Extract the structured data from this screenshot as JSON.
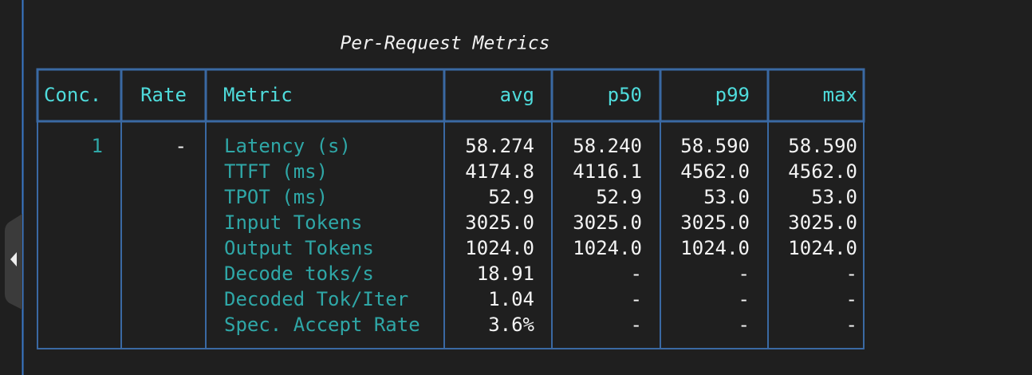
{
  "title": "Per-Request Metrics",
  "table": {
    "headers": [
      "Conc.",
      "Rate",
      "Metric",
      "avg",
      "p50",
      "p99",
      "max"
    ],
    "conc": "1",
    "rate": "-",
    "rows": [
      [
        "Latency (s)",
        "58.274",
        "58.240",
        "58.590",
        "58.590"
      ],
      [
        "TTFT (ms)",
        "4174.8",
        "4116.1",
        "4562.0",
        "4562.0"
      ],
      [
        "TPOT (ms)",
        "52.9",
        "52.9",
        "53.0",
        "53.0"
      ],
      [
        "Input Tokens",
        "3025.0",
        "3025.0",
        "3025.0",
        "3025.0"
      ],
      [
        "Output Tokens",
        "1024.0",
        "1024.0",
        "1024.0",
        "1024.0"
      ],
      [
        "Decode toks/s",
        "18.91",
        "-",
        "-",
        "-"
      ],
      [
        "Decoded Tok/Iter",
        "1.04",
        "-",
        "-",
        "-"
      ],
      [
        "Spec. Accept Rate",
        "3.6%",
        "-",
        "-",
        "-"
      ]
    ]
  }
}
